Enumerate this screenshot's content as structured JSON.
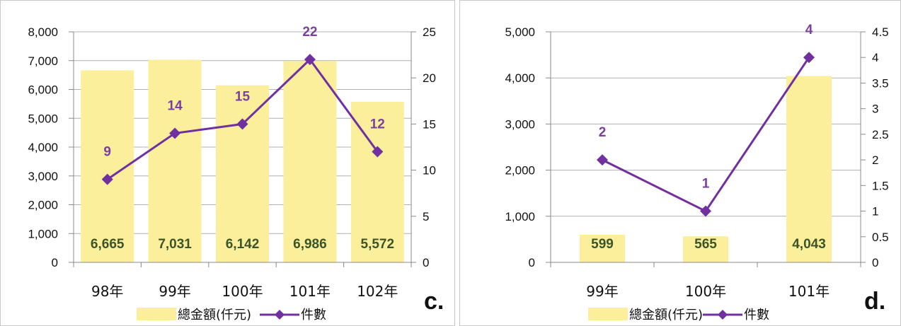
{
  "colors": {
    "bar": "#FBEF9C",
    "line": "#7030A0",
    "bar_label": "#3B5528",
    "point_label": "#7A3FA0",
    "axis": "#888888",
    "grid": "#B0B0B0"
  },
  "legend": {
    "bar_series": "總金額(仟元)",
    "line_series": "件數"
  },
  "chart_data": [
    {
      "panel_label": "c.",
      "type": "bar",
      "combo": "bar+line (dual y-axis)",
      "categories": [
        "98年",
        "99年",
        "100年",
        "101年",
        "102年"
      ],
      "series": [
        {
          "name": "總金額(仟元)",
          "type": "bar",
          "axis": "left",
          "values": [
            6665,
            7031,
            6142,
            6986,
            5572
          ],
          "labels": [
            "6,665",
            "7,031",
            "6,142",
            "6,986",
            "5,572"
          ]
        },
        {
          "name": "件數",
          "type": "line",
          "axis": "right",
          "values": [
            9,
            14,
            15,
            22,
            12
          ],
          "labels": [
            "9",
            "14",
            "15",
            "22",
            "12"
          ]
        }
      ],
      "y_left": {
        "ylim": [
          0,
          8000
        ],
        "ticks": [
          "0",
          "1,000",
          "2,000",
          "3,000",
          "4,000",
          "5,000",
          "6,000",
          "7,000",
          "8,000"
        ]
      },
      "y_right": {
        "ylim": [
          0,
          25
        ],
        "ticks": [
          "0",
          "5",
          "10",
          "15",
          "20",
          "25"
        ]
      },
      "grid": true,
      "legend_position": "bottom"
    },
    {
      "panel_label": "d.",
      "type": "bar",
      "combo": "bar+line (dual y-axis)",
      "categories": [
        "99年",
        "100年",
        "101年"
      ],
      "series": [
        {
          "name": "總金額(仟元)",
          "type": "bar",
          "axis": "left",
          "values": [
            599,
            565,
            4043
          ],
          "labels": [
            "599",
            "565",
            "4,043"
          ]
        },
        {
          "name": "件數",
          "type": "line",
          "axis": "right",
          "values": [
            2,
            1,
            4
          ],
          "labels": [
            "2",
            "1",
            "4"
          ]
        }
      ],
      "y_left": {
        "ylim": [
          0,
          5000
        ],
        "ticks": [
          "0",
          "1,000",
          "2,000",
          "3,000",
          "4,000",
          "5,000"
        ]
      },
      "y_right": {
        "ylim": [
          0,
          4.5
        ],
        "ticks": [
          "0",
          "0.5",
          "1",
          "1.5",
          "2",
          "2.5",
          "3",
          "3.5",
          "4",
          "4.5"
        ]
      },
      "grid": true,
      "legend_position": "bottom"
    }
  ]
}
